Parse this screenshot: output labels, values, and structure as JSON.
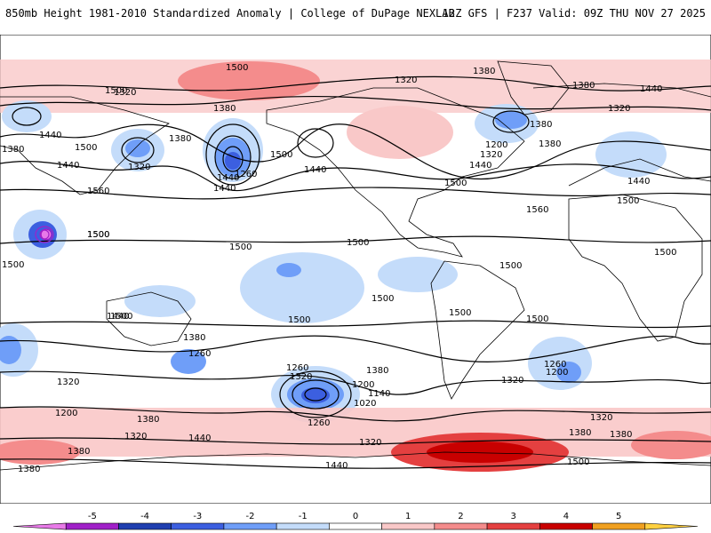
{
  "header": {
    "title": "850mb Height 1981-2010 Standardized Anomaly | College of DuPage NEXLAB",
    "run_info": "12Z GFS | F237 Valid: 09Z THU NOV 27 2025"
  },
  "colorbar": {
    "ticks": [
      "-5",
      "-4",
      "-3",
      "-2",
      "-1",
      "0",
      "1",
      "2",
      "3",
      "4",
      "5"
    ],
    "colors": [
      "#e87ae8",
      "#a020c8",
      "#1f3fb0",
      "#3c5fe0",
      "#6f9ef8",
      "#c4dcfa",
      "#ffffff",
      "#f9c8c8",
      "#f48c8c",
      "#e44040",
      "#c80000",
      "#f0a020",
      "#ffd040"
    ]
  },
  "contour_labels": [
    {
      "id": "c1",
      "text": "1500"
    },
    {
      "id": "c2",
      "text": "1380"
    },
    {
      "id": "c3",
      "text": "1320"
    },
    {
      "id": "c4",
      "text": "1380"
    },
    {
      "id": "c5",
      "text": "1440"
    },
    {
      "id": "c6",
      "text": "1500"
    },
    {
      "id": "c7",
      "text": "1380"
    },
    {
      "id": "c8",
      "text": "1440"
    },
    {
      "id": "c9",
      "text": "1320"
    },
    {
      "id": "c10",
      "text": "1380"
    },
    {
      "id": "c11",
      "text": "1500"
    },
    {
      "id": "c12",
      "text": "1440"
    },
    {
      "id": "c13",
      "text": "1260"
    },
    {
      "id": "c14",
      "text": "1440"
    },
    {
      "id": "c15",
      "text": "1500"
    },
    {
      "id": "c16",
      "text": "1440"
    },
    {
      "id": "c17",
      "text": "1560"
    },
    {
      "id": "c18",
      "text": "1500"
    },
    {
      "id": "c19",
      "text": "1320"
    },
    {
      "id": "c20",
      "text": "1380"
    },
    {
      "id": "c21",
      "text": "1380"
    },
    {
      "id": "c22",
      "text": "1440"
    },
    {
      "id": "c23",
      "text": "1320"
    },
    {
      "id": "c24",
      "text": "1200"
    },
    {
      "id": "c25",
      "text": "1320"
    },
    {
      "id": "c26",
      "text": "1380"
    },
    {
      "id": "c27",
      "text": "1440"
    },
    {
      "id": "c28",
      "text": "1500"
    },
    {
      "id": "c29",
      "text": "1560"
    },
    {
      "id": "c30",
      "text": "1440"
    },
    {
      "id": "c31",
      "text": "1500"
    },
    {
      "id": "c32",
      "text": "1500"
    },
    {
      "id": "c33",
      "text": "1500"
    },
    {
      "id": "c34",
      "text": "1500"
    },
    {
      "id": "c35",
      "text": "1500"
    },
    {
      "id": "c36",
      "text": "1500"
    },
    {
      "id": "c37",
      "text": "1500"
    },
    {
      "id": "c38",
      "text": "1500"
    },
    {
      "id": "c39",
      "text": "1500"
    },
    {
      "id": "c40",
      "text": "1500"
    },
    {
      "id": "c41",
      "text": "1500"
    },
    {
      "id": "c42",
      "text": "1500"
    },
    {
      "id": "c43",
      "text": "1440"
    },
    {
      "id": "c44",
      "text": "1380"
    },
    {
      "id": "c45",
      "text": "1260"
    },
    {
      "id": "c46",
      "text": "1200"
    },
    {
      "id": "c47",
      "text": "1320"
    },
    {
      "id": "c48",
      "text": "1380"
    },
    {
      "id": "c49",
      "text": "1320"
    },
    {
      "id": "c50",
      "text": "1440"
    },
    {
      "id": "c51",
      "text": "1380"
    },
    {
      "id": "c52",
      "text": "1380"
    },
    {
      "id": "c53",
      "text": "1260"
    },
    {
      "id": "c54",
      "text": "1320"
    },
    {
      "id": "c55",
      "text": "1200"
    },
    {
      "id": "c56",
      "text": "1140"
    },
    {
      "id": "c57",
      "text": "1020"
    },
    {
      "id": "c58",
      "text": "1260"
    },
    {
      "id": "c59",
      "text": "1320"
    },
    {
      "id": "c60",
      "text": "1440"
    },
    {
      "id": "c61",
      "text": "1380"
    },
    {
      "id": "c62",
      "text": "1320"
    },
    {
      "id": "c63",
      "text": "1260"
    },
    {
      "id": "c64",
      "text": "1200"
    },
    {
      "id": "c65",
      "text": "1320"
    },
    {
      "id": "c66",
      "text": "1380"
    },
    {
      "id": "c67",
      "text": "1380"
    },
    {
      "id": "c68",
      "text": "1500"
    }
  ]
}
